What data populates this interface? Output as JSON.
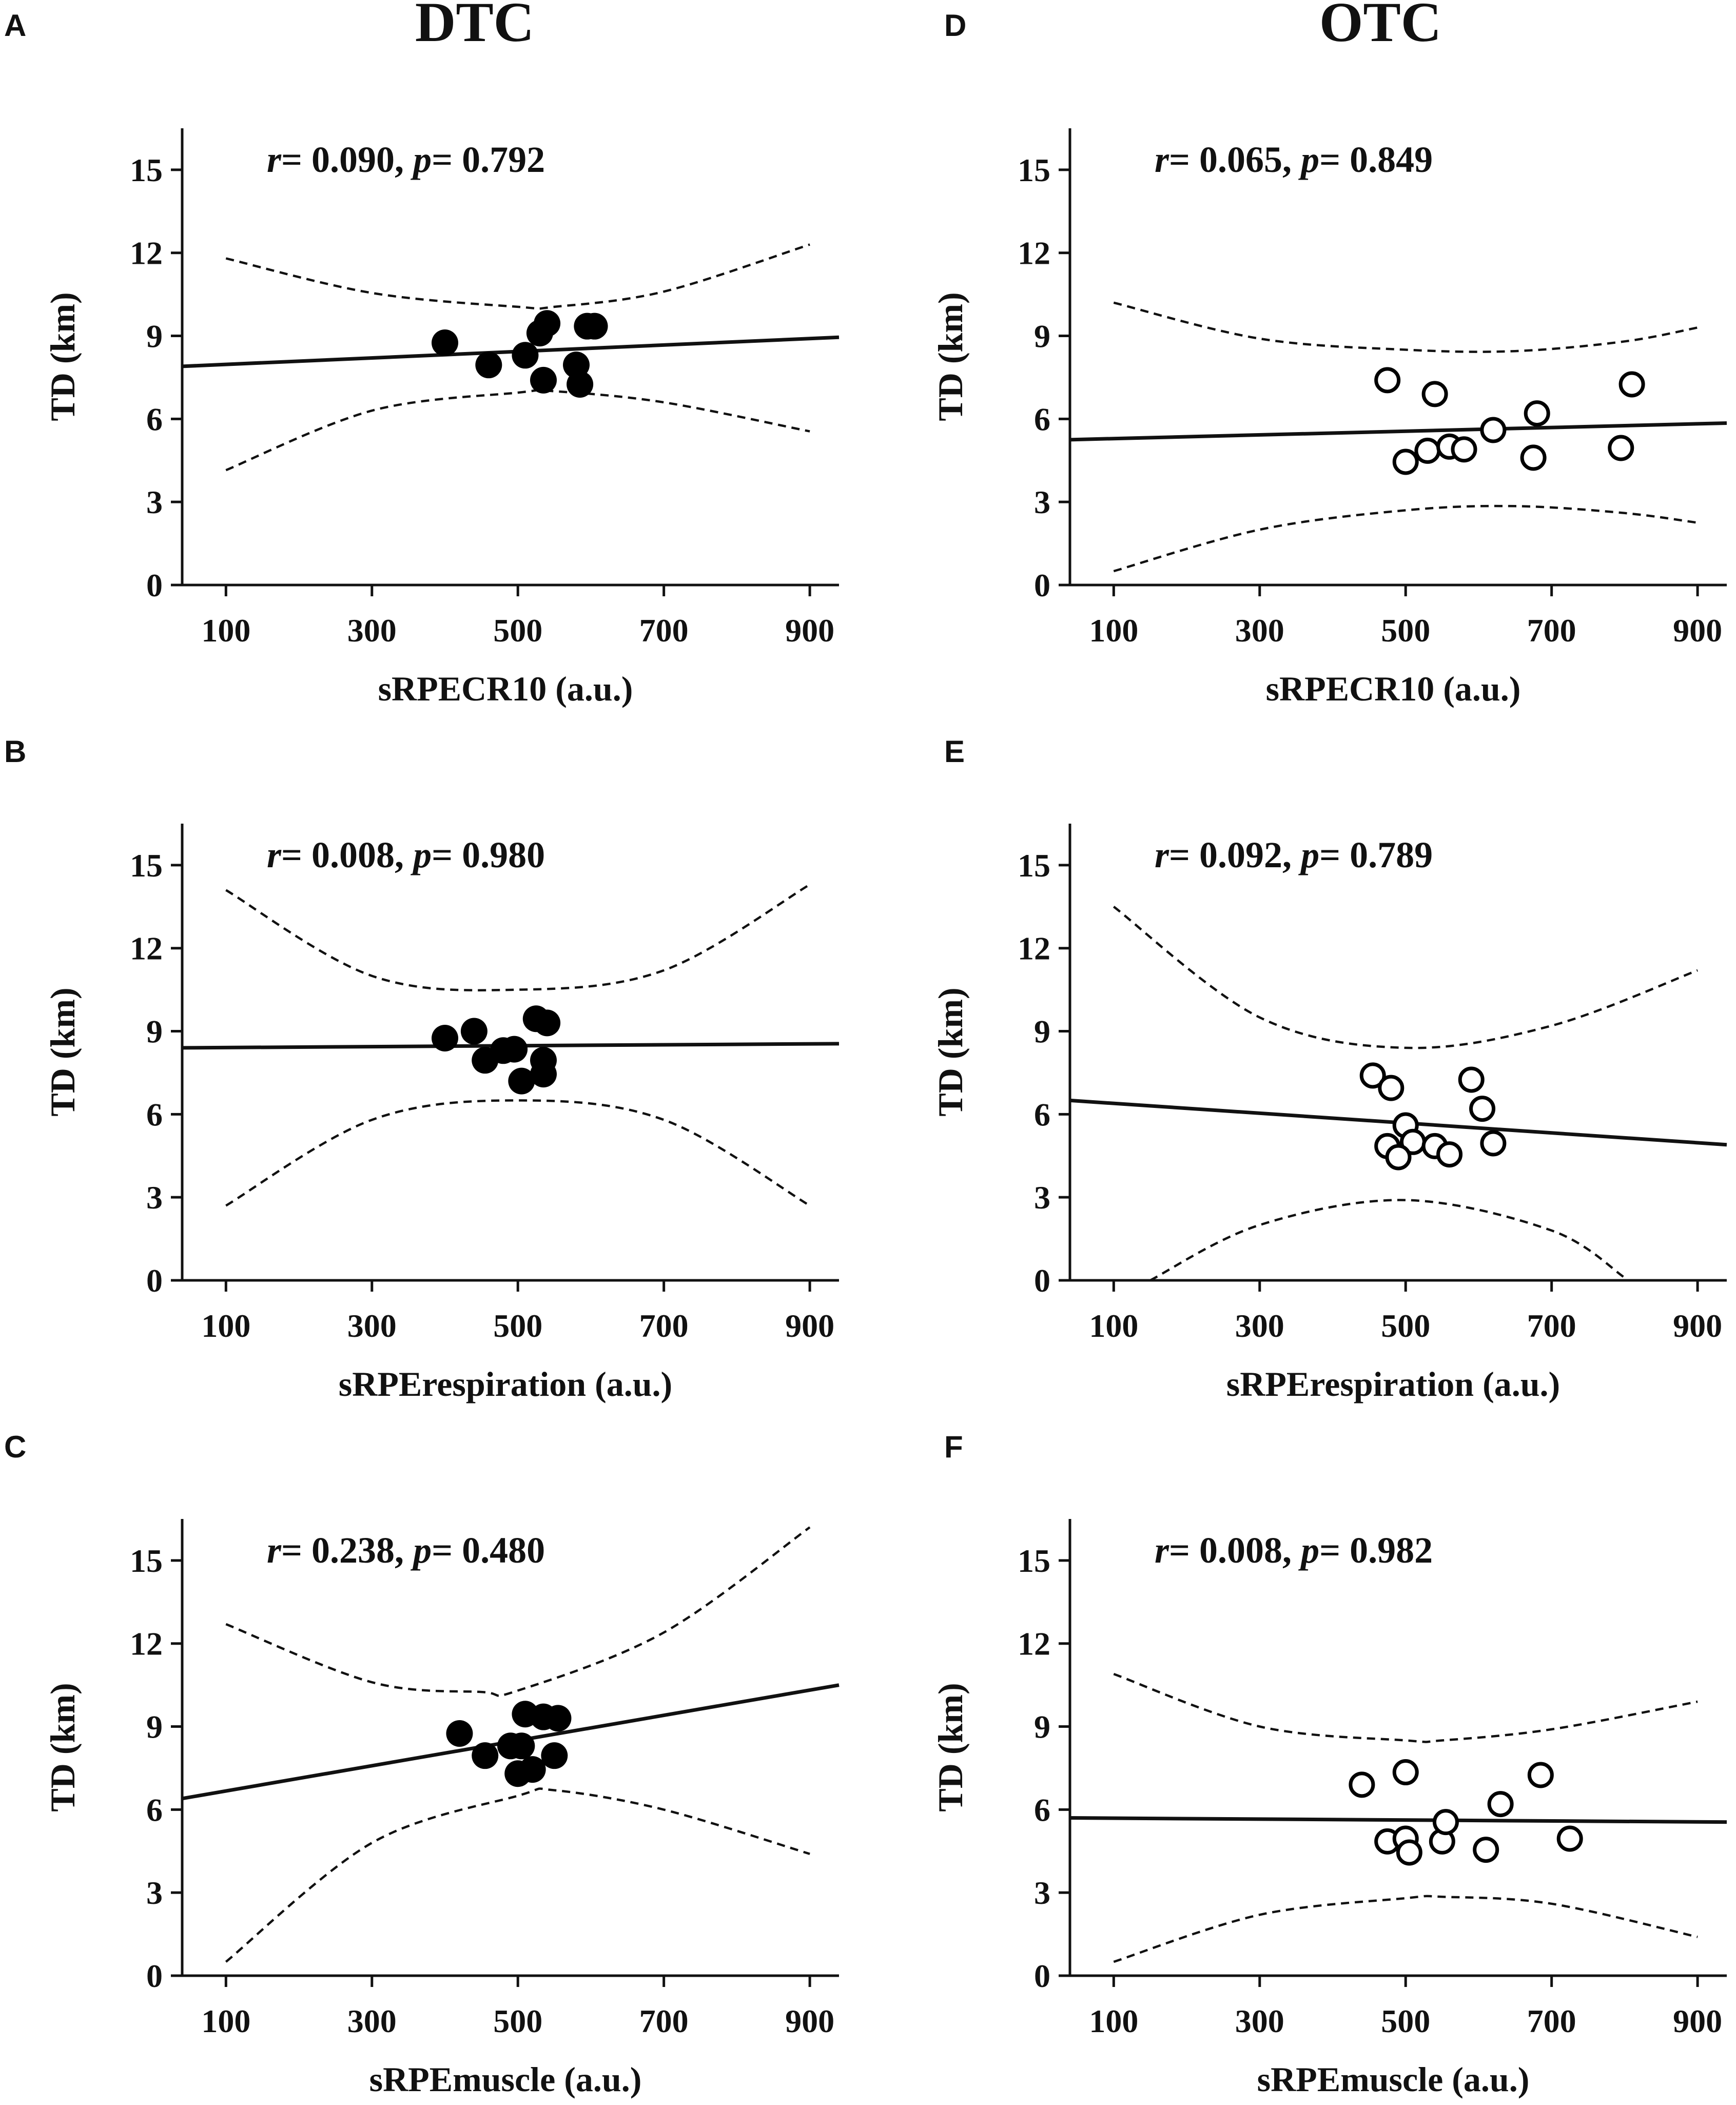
{
  "columns": [
    {
      "title": "DTC"
    },
    {
      "title": "OTC"
    }
  ],
  "chart_data": [
    {
      "panel": "A",
      "group": "DTC",
      "type": "scatter",
      "xlabel": "sRPECR10 (a.u.)",
      "ylabel": "TD (km)",
      "xlim": [
        40,
        940
      ],
      "ylim": [
        0,
        16.5
      ],
      "xticks": [
        100,
        300,
        500,
        700,
        900
      ],
      "yticks": [
        0,
        3,
        6,
        9,
        12,
        15
      ],
      "stats": {
        "r_label": "r",
        "r_value": "= 0.090, ",
        "p_label": "p",
        "p_value": "= 0.792"
      },
      "marker": "filled",
      "points": [
        [
          400,
          8.75
        ],
        [
          460,
          7.95
        ],
        [
          510,
          8.3
        ],
        [
          530,
          9.1
        ],
        [
          540,
          9.45
        ],
        [
          535,
          7.4
        ],
        [
          580,
          7.95
        ],
        [
          585,
          7.25
        ],
        [
          595,
          9.35
        ],
        [
          605,
          9.35
        ]
      ],
      "fit": {
        "x": [
          40,
          940
        ],
        "y": [
          7.9,
          8.95
        ]
      },
      "ci_upper": {
        "x": [
          100,
          300,
          500,
          550,
          700,
          900
        ],
        "y": [
          11.8,
          10.55,
          10.05,
          10.05,
          10.6,
          12.3
        ]
      },
      "ci_lower": {
        "x": [
          100,
          300,
          500,
          550,
          700,
          900
        ],
        "y": [
          4.15,
          6.3,
          6.95,
          7.0,
          6.6,
          5.55
        ]
      }
    },
    {
      "panel": "B",
      "group": "DTC",
      "type": "scatter",
      "xlabel": "sRPErespiration (a.u.)",
      "ylabel": "TD (km)",
      "xlim": [
        40,
        940
      ],
      "ylim": [
        0,
        16.5
      ],
      "xticks": [
        100,
        300,
        500,
        700,
        900
      ],
      "yticks": [
        0,
        3,
        6,
        9,
        12,
        15
      ],
      "stats": {
        "r_label": "r",
        "r_value": "= 0.008, ",
        "p_label": "p",
        "p_value": "= 0.980"
      },
      "marker": "filled",
      "points": [
        [
          400,
          8.75
        ],
        [
          440,
          9.0
        ],
        [
          455,
          7.95
        ],
        [
          480,
          8.3
        ],
        [
          495,
          8.35
        ],
        [
          505,
          7.2
        ],
        [
          525,
          9.45
        ],
        [
          540,
          9.3
        ],
        [
          535,
          7.45
        ],
        [
          535,
          7.95
        ]
      ],
      "fit": {
        "x": [
          40,
          940
        ],
        "y": [
          8.4,
          8.55
        ]
      },
      "ci_upper": {
        "x": [
          100,
          300,
          500,
          700,
          900
        ],
        "y": [
          14.1,
          11.0,
          10.5,
          11.2,
          14.3
        ]
      },
      "ci_lower": {
        "x": [
          100,
          300,
          500,
          700,
          900
        ],
        "y": [
          2.7,
          5.8,
          6.5,
          5.8,
          2.7
        ]
      }
    },
    {
      "panel": "C",
      "group": "DTC",
      "type": "scatter",
      "xlabel": "sRPEmuscle (a.u.)",
      "ylabel": "TD (km)",
      "xlim": [
        40,
        940
      ],
      "ylim": [
        0,
        16.5
      ],
      "xticks": [
        100,
        300,
        500,
        700,
        900
      ],
      "yticks": [
        0,
        3,
        6,
        9,
        12,
        15
      ],
      "stats": {
        "r_label": "r",
        "r_value": "= 0.238, ",
        "p_label": "p",
        "p_value": "= 0.480"
      },
      "marker": "filled",
      "points": [
        [
          420,
          8.75
        ],
        [
          455,
          7.95
        ],
        [
          490,
          8.3
        ],
        [
          505,
          8.3
        ],
        [
          500,
          7.3
        ],
        [
          520,
          7.45
        ],
        [
          510,
          9.45
        ],
        [
          535,
          9.35
        ],
        [
          555,
          9.3
        ],
        [
          550,
          7.95
        ]
      ],
      "fit": {
        "x": [
          40,
          940
        ],
        "y": [
          6.4,
          10.5
        ]
      },
      "ci_upper": {
        "x": [
          100,
          300,
          450,
          500,
          700,
          900
        ],
        "y": [
          12.7,
          10.6,
          10.25,
          10.3,
          12.4,
          16.2
        ]
      },
      "ci_lower": {
        "x": [
          100,
          300,
          500,
          550,
          700,
          900
        ],
        "y": [
          0.5,
          4.8,
          6.5,
          6.7,
          6.0,
          4.4
        ]
      }
    },
    {
      "panel": "D",
      "group": "OTC",
      "type": "scatter",
      "xlabel": "sRPECR10 (a.u.)",
      "ylabel": "TD (km)",
      "xlim": [
        40,
        940
      ],
      "ylim": [
        0,
        16.5
      ],
      "xticks": [
        100,
        300,
        500,
        700,
        900
      ],
      "yticks": [
        0,
        3,
        6,
        9,
        12,
        15
      ],
      "stats": {
        "r_label": "r",
        "r_value": "= 0.065, ",
        "p_label": "p",
        "p_value": "= 0.849"
      },
      "marker": "open",
      "points": [
        [
          475,
          7.4
        ],
        [
          540,
          6.9
        ],
        [
          500,
          4.45
        ],
        [
          530,
          4.85
        ],
        [
          560,
          5.0
        ],
        [
          580,
          4.9
        ],
        [
          620,
          5.6
        ],
        [
          680,
          6.2
        ],
        [
          675,
          4.6
        ],
        [
          795,
          4.95
        ],
        [
          810,
          7.25
        ]
      ],
      "fit": {
        "x": [
          40,
          940
        ],
        "y": [
          5.25,
          5.85
        ]
      },
      "ci_upper": {
        "x": [
          100,
          300,
          500,
          650,
          800,
          900
        ],
        "y": [
          10.2,
          8.9,
          8.5,
          8.45,
          8.8,
          9.3
        ]
      },
      "ci_lower": {
        "x": [
          100,
          300,
          500,
          650,
          800,
          900
        ],
        "y": [
          0.5,
          2.0,
          2.7,
          2.85,
          2.6,
          2.25
        ]
      }
    },
    {
      "panel": "E",
      "group": "OTC",
      "type": "scatter",
      "xlabel": "sRPErespiration (a.u.)",
      "ylabel": "TD (km)",
      "xlim": [
        40,
        940
      ],
      "ylim": [
        0,
        16.5
      ],
      "xticks": [
        100,
        300,
        500,
        700,
        900
      ],
      "yticks": [
        0,
        3,
        6,
        9,
        12,
        15
      ],
      "stats": {
        "r_label": "r",
        "r_value": "= 0.092, ",
        "p_label": "p",
        "p_value": "= 0.789"
      },
      "marker": "open",
      "points": [
        [
          455,
          7.4
        ],
        [
          480,
          6.95
        ],
        [
          500,
          5.6
        ],
        [
          510,
          5.0
        ],
        [
          475,
          4.85
        ],
        [
          490,
          4.45
        ],
        [
          540,
          4.85
        ],
        [
          560,
          4.55
        ],
        [
          590,
          7.25
        ],
        [
          605,
          6.2
        ],
        [
          620,
          4.95
        ]
      ],
      "fit": {
        "x": [
          40,
          940
        ],
        "y": [
          6.5,
          4.9
        ]
      },
      "ci_upper": {
        "x": [
          100,
          300,
          500,
          700,
          900
        ],
        "y": [
          13.5,
          9.5,
          8.4,
          9.2,
          11.2
        ]
      },
      "ci_lower": {
        "x": [
          150,
          300,
          500,
          700,
          800
        ],
        "y": [
          0,
          2.0,
          2.9,
          1.8,
          0.1
        ]
      }
    },
    {
      "panel": "F",
      "group": "OTC",
      "type": "scatter",
      "xlabel": "sRPEmuscle (a.u.)",
      "ylabel": "TD (km)",
      "xlim": [
        40,
        940
      ],
      "ylim": [
        0,
        16.5
      ],
      "xticks": [
        100,
        300,
        500,
        700,
        900
      ],
      "yticks": [
        0,
        3,
        6,
        9,
        12,
        15
      ],
      "stats": {
        "r_label": "r",
        "r_value": "= 0.008, ",
        "p_label": "p",
        "p_value": "= 0.982"
      },
      "marker": "open",
      "points": [
        [
          440,
          6.9
        ],
        [
          500,
          7.35
        ],
        [
          475,
          4.85
        ],
        [
          500,
          4.95
        ],
        [
          505,
          4.45
        ],
        [
          550,
          4.85
        ],
        [
          555,
          5.55
        ],
        [
          610,
          4.55
        ],
        [
          630,
          6.2
        ],
        [
          685,
          7.25
        ],
        [
          725,
          4.95
        ]
      ],
      "fit": {
        "x": [
          40,
          940
        ],
        "y": [
          5.7,
          5.55
        ]
      },
      "ci_upper": {
        "x": [
          100,
          300,
          500,
          550,
          700,
          900
        ],
        "y": [
          10.9,
          9.0,
          8.5,
          8.5,
          8.9,
          9.9
        ]
      },
      "ci_lower": {
        "x": [
          100,
          300,
          500,
          550,
          700,
          900
        ],
        "y": [
          0.5,
          2.2,
          2.8,
          2.85,
          2.6,
          1.4
        ]
      }
    }
  ]
}
